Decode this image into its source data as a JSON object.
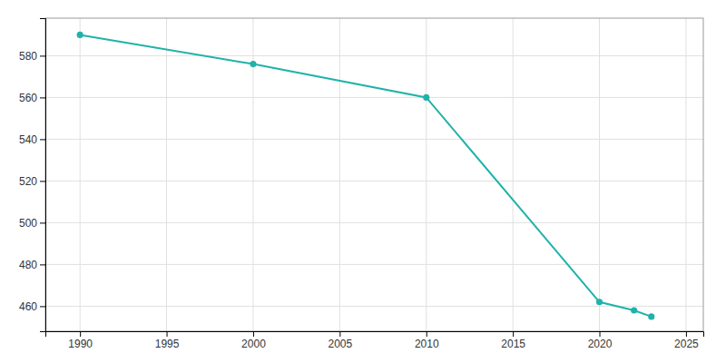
{
  "chart_data": {
    "type": "line",
    "x": [
      1990,
      2000,
      2010,
      2020,
      2022,
      2023
    ],
    "values": [
      590,
      576,
      560,
      462,
      458,
      455
    ],
    "color": "#20B2AA",
    "marker": "circle",
    "xlim": [
      1988,
      2026
    ],
    "ylim": [
      448,
      598
    ],
    "xticks": [
      1990,
      1995,
      2000,
      2005,
      2010,
      2015,
      2020,
      2025
    ],
    "yticks": [
      460,
      480,
      500,
      520,
      540,
      560,
      580
    ],
    "grid": true
  }
}
